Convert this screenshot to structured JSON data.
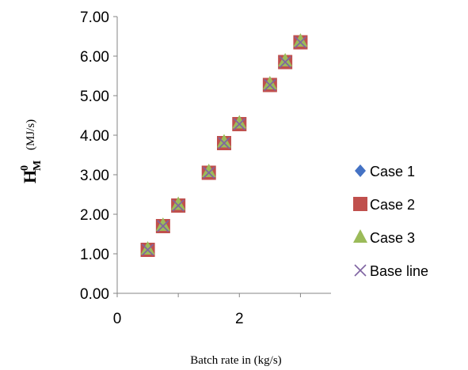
{
  "chart_data": {
    "type": "scatter",
    "title": "",
    "xlabel": "Batch rate in (kg/s)",
    "ylabel": {
      "symbol": "H",
      "superscript": "0",
      "subscript": "M",
      "unit": "(MJ/s)"
    },
    "xlim": [
      0,
      3.5
    ],
    "ylim": [
      0,
      7
    ],
    "x_ticks": [
      {
        "value": 0,
        "label": "0"
      },
      {
        "value": 2,
        "label": "2"
      }
    ],
    "y_ticks": [
      {
        "value": 0,
        "label": "0.00"
      },
      {
        "value": 1,
        "label": "1.00"
      },
      {
        "value": 2,
        "label": "2.00"
      },
      {
        "value": 3,
        "label": "3.00"
      },
      {
        "value": 4,
        "label": "4.00"
      },
      {
        "value": 5,
        "label": "5.00"
      },
      {
        "value": 6,
        "label": "6.00"
      },
      {
        "value": 7,
        "label": "7.00"
      }
    ],
    "grid": false,
    "legend_position": "right",
    "series": [
      {
        "name": "Case 1",
        "marker": "diamond",
        "color": "#4472C4",
        "x": [
          0.5,
          0.75,
          1.0,
          1.5,
          1.75,
          2.0,
          2.5,
          2.75,
          3.0
        ],
        "y": [
          1.1,
          1.7,
          2.22,
          3.05,
          3.8,
          4.28,
          5.27,
          5.85,
          6.35
        ]
      },
      {
        "name": "Case 2",
        "marker": "square",
        "color": "#C0504D",
        "x": [
          0.5,
          0.75,
          1.0,
          1.5,
          1.75,
          2.0,
          2.5,
          2.75,
          3.0
        ],
        "y": [
          1.1,
          1.7,
          2.22,
          3.05,
          3.8,
          4.28,
          5.27,
          5.85,
          6.35
        ]
      },
      {
        "name": "Case 3",
        "marker": "triangle",
        "color": "#9BBB59",
        "x": [
          0.5,
          0.75,
          1.0,
          1.5,
          1.75,
          2.0,
          2.5,
          2.75,
          3.0
        ],
        "y": [
          1.12,
          1.72,
          2.25,
          3.08,
          3.83,
          4.31,
          5.3,
          5.88,
          6.38
        ]
      },
      {
        "name": "Base line",
        "marker": "x",
        "color": "#8064A2",
        "x": [
          0.5,
          0.75,
          1.0,
          1.5,
          1.75,
          2.0,
          2.5,
          2.75,
          3.0
        ],
        "y": [
          1.1,
          1.7,
          2.22,
          3.05,
          3.8,
          4.28,
          5.27,
          5.85,
          6.35
        ]
      }
    ]
  }
}
